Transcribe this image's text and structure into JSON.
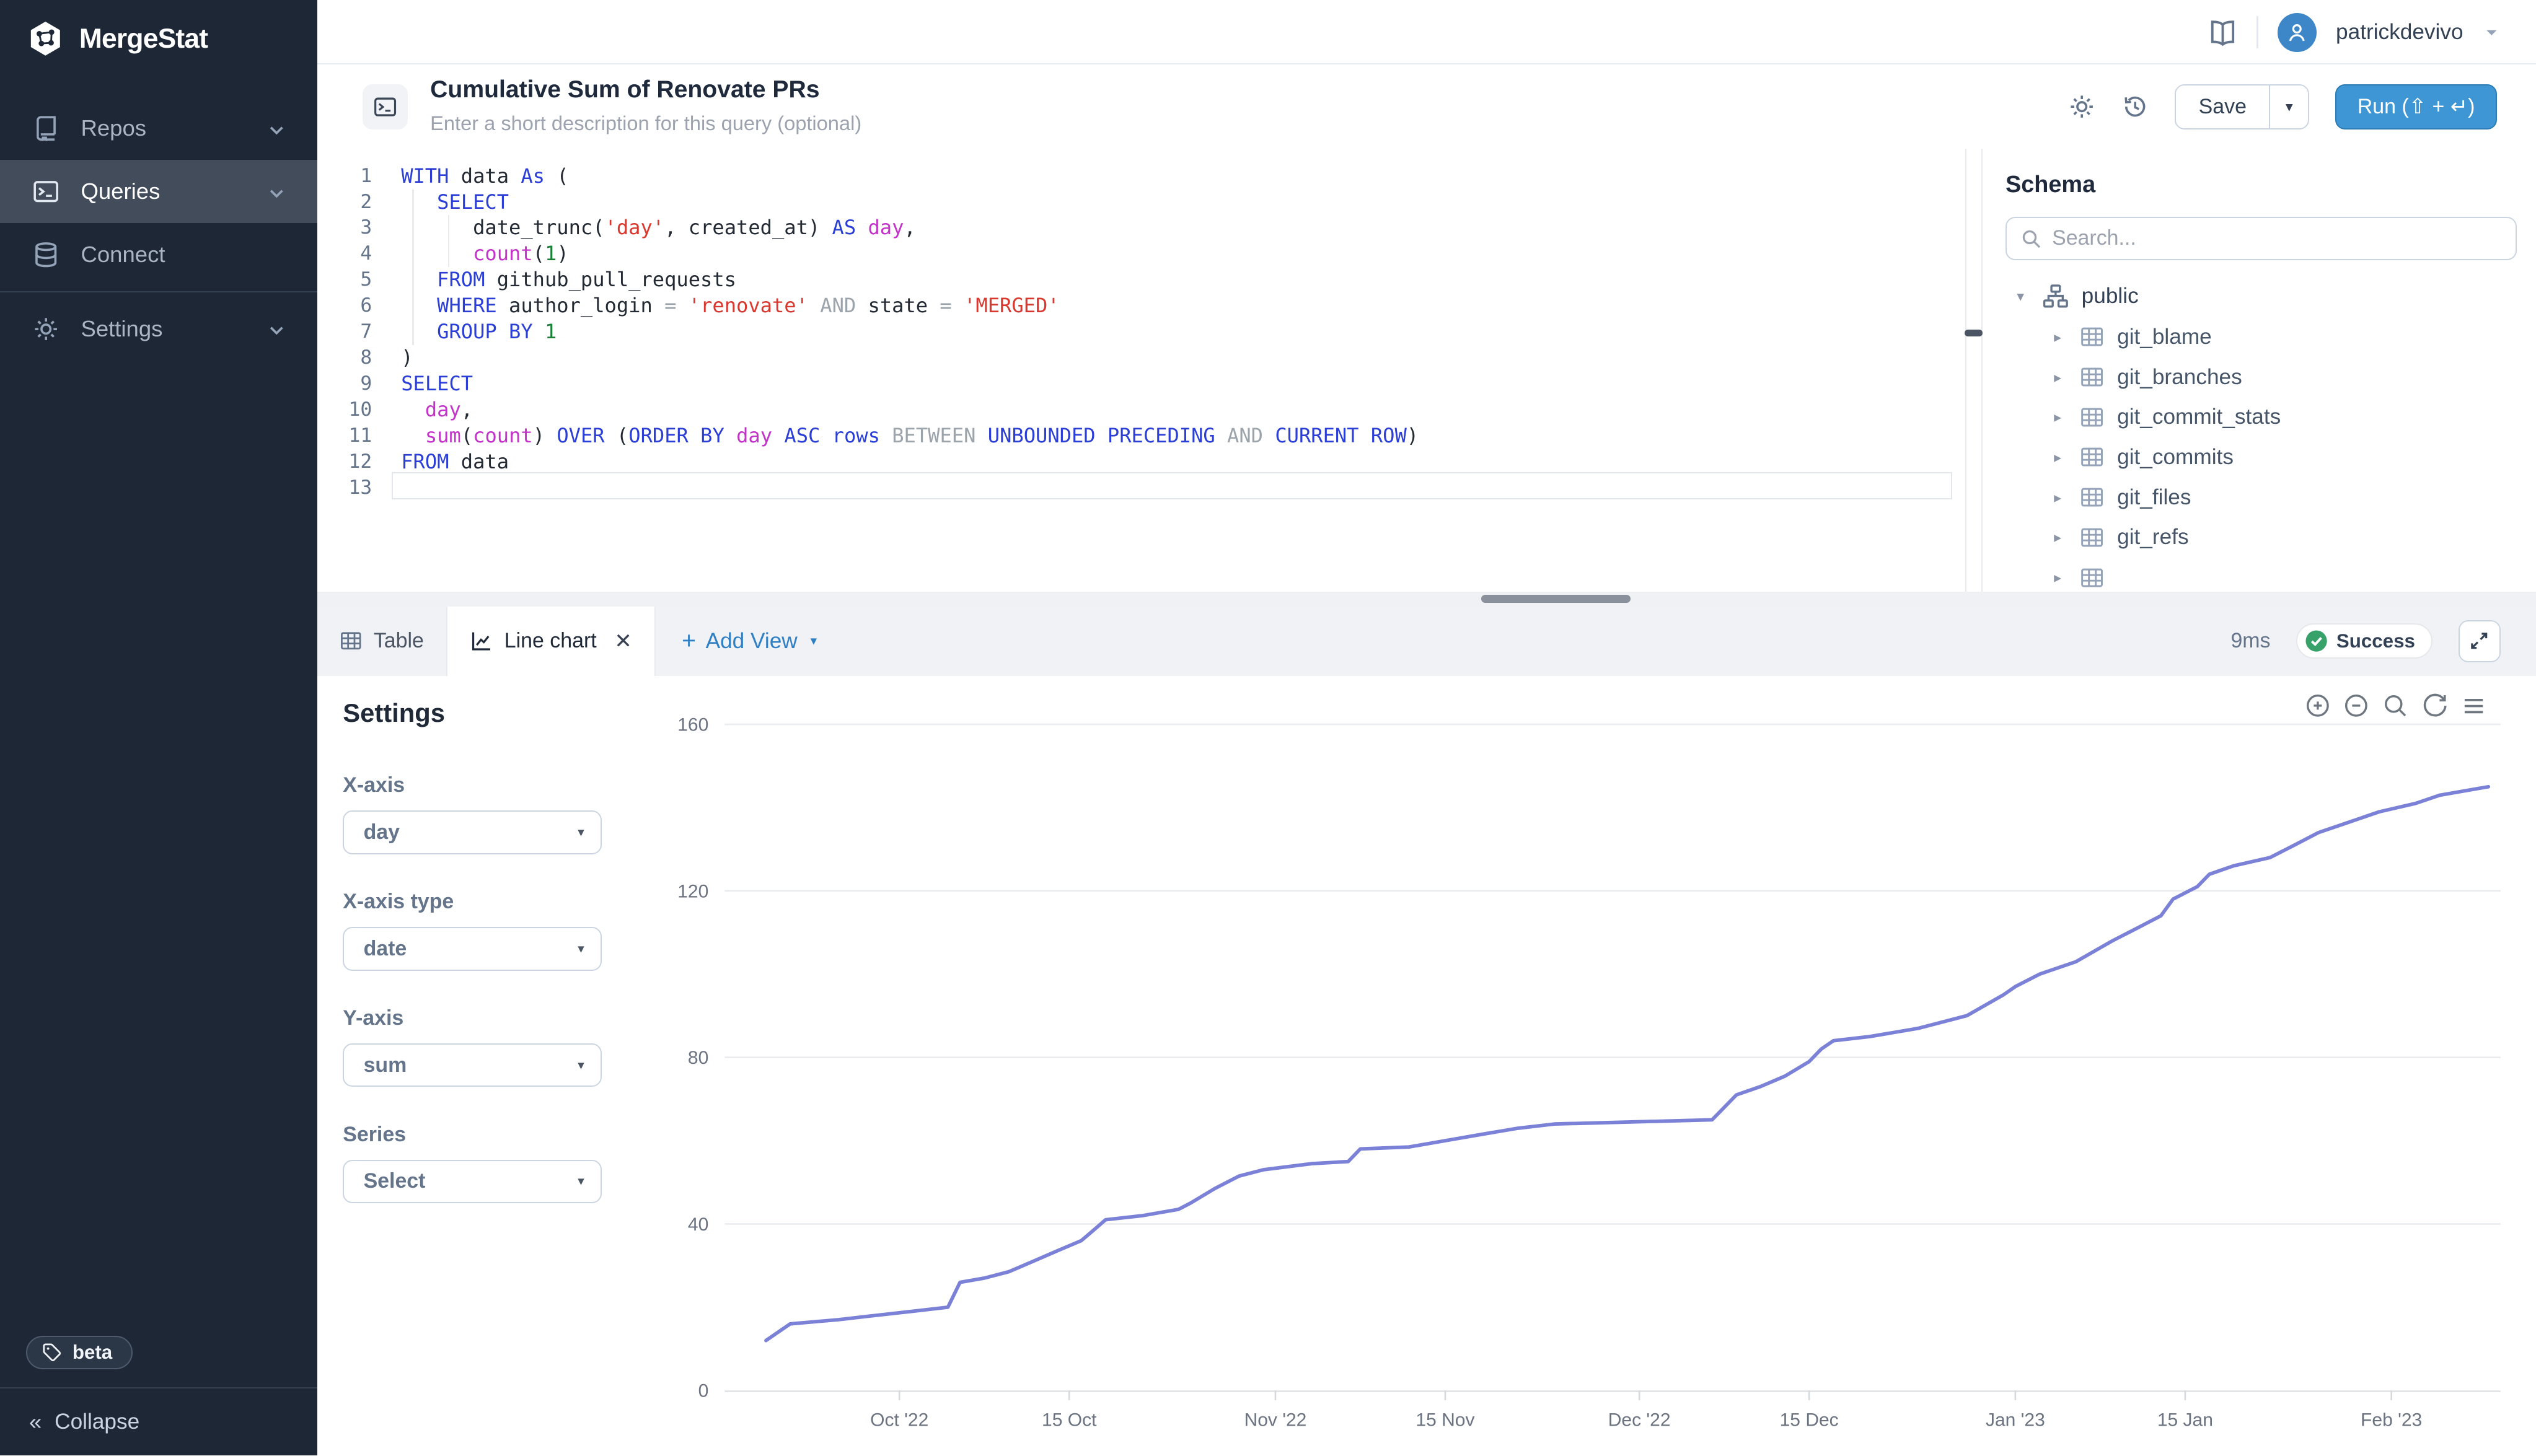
{
  "colors": {
    "sidebar_bg": "#1d2736",
    "accent_blue": "#3e97d4",
    "link_blue": "#2f7fc5",
    "success_green": "#36a269",
    "chart_line": "#7a81d6"
  },
  "sidebar": {
    "logo_text": "MergeStat",
    "items": [
      {
        "id": "repos",
        "label": "Repos",
        "icon": "repo-icon",
        "chevron": true,
        "active": false,
        "divider_above": false
      },
      {
        "id": "queries",
        "label": "Queries",
        "icon": "terminal-icon",
        "chevron": true,
        "active": true,
        "divider_above": false
      },
      {
        "id": "connect",
        "label": "Connect",
        "icon": "database-icon",
        "chevron": false,
        "active": false,
        "divider_above": false
      },
      {
        "id": "settings",
        "label": "Settings",
        "icon": "gear-icon",
        "chevron": true,
        "active": false,
        "divider_above": true
      }
    ],
    "beta_badge_label": "beta",
    "collapse_label": "Collapse"
  },
  "topbar": {
    "username": "patrickdevivo"
  },
  "query_header": {
    "title": "Cumulative Sum of Renovate PRs",
    "description_placeholder": "Enter a short description for this query (optional)",
    "save_label": "Save",
    "run_label": "Run (⇧ + ↵)"
  },
  "editor": {
    "active_line": 13,
    "lines": [
      {
        "n": 1,
        "g": 0,
        "t": [
          [
            "WITH",
            "kw"
          ],
          [
            " data ",
            "pl"
          ],
          [
            "As",
            "kw"
          ],
          [
            " (",
            "pl"
          ]
        ]
      },
      {
        "n": 2,
        "g": 1,
        "t": [
          [
            "   ",
            "pl"
          ],
          [
            "SELECT",
            "kw"
          ]
        ]
      },
      {
        "n": 3,
        "g": 2,
        "t": [
          [
            "      ",
            "pl"
          ],
          [
            "date_trunc(",
            "pl"
          ],
          [
            "'day'",
            "str"
          ],
          [
            ", created_at) ",
            "pl"
          ],
          [
            "AS",
            "kw"
          ],
          [
            " ",
            "pl"
          ],
          [
            "day",
            "fn"
          ],
          [
            ",",
            "pl"
          ]
        ]
      },
      {
        "n": 4,
        "g": 2,
        "t": [
          [
            "      ",
            "pl"
          ],
          [
            "count",
            "fn"
          ],
          [
            "(",
            "pl"
          ],
          [
            "1",
            "num"
          ],
          [
            ")",
            "pl"
          ]
        ]
      },
      {
        "n": 5,
        "g": 1,
        "t": [
          [
            "   ",
            "pl"
          ],
          [
            "FROM",
            "kw"
          ],
          [
            " github_pull_requests",
            "pl"
          ]
        ]
      },
      {
        "n": 6,
        "g": 1,
        "t": [
          [
            "   ",
            "pl"
          ],
          [
            "WHERE",
            "kw"
          ],
          [
            " author_login ",
            "pl"
          ],
          [
            "=",
            "op"
          ],
          [
            " ",
            "pl"
          ],
          [
            "'renovate'",
            "str"
          ],
          [
            " ",
            "pl"
          ],
          [
            "AND",
            "op"
          ],
          [
            " state ",
            "pl"
          ],
          [
            "=",
            "op"
          ],
          [
            " ",
            "pl"
          ],
          [
            "'MERGED'",
            "str"
          ]
        ]
      },
      {
        "n": 7,
        "g": 1,
        "t": [
          [
            "   ",
            "pl"
          ],
          [
            "GROUP BY",
            "kw"
          ],
          [
            " ",
            "pl"
          ],
          [
            "1",
            "num"
          ]
        ]
      },
      {
        "n": 8,
        "g": 0,
        "t": [
          [
            ")",
            "pl"
          ]
        ]
      },
      {
        "n": 9,
        "g": 0,
        "t": [
          [
            "SELECT",
            "kw"
          ]
        ]
      },
      {
        "n": 10,
        "g": 0,
        "t": [
          [
            "  ",
            "pl"
          ],
          [
            "day",
            "fn"
          ],
          [
            ",",
            "pl"
          ]
        ]
      },
      {
        "n": 11,
        "g": 0,
        "t": [
          [
            "  ",
            "pl"
          ],
          [
            "sum",
            "fn"
          ],
          [
            "(",
            "pl"
          ],
          [
            "count",
            "fn"
          ],
          [
            ") ",
            "pl"
          ],
          [
            "OVER",
            "kw"
          ],
          [
            " (",
            "pl"
          ],
          [
            "ORDER BY",
            "kw"
          ],
          [
            " ",
            "pl"
          ],
          [
            "day",
            "fn"
          ],
          [
            " ",
            "pl"
          ],
          [
            "ASC rows",
            "kw"
          ],
          [
            " ",
            "pl"
          ],
          [
            "BETWEEN",
            "op"
          ],
          [
            " ",
            "pl"
          ],
          [
            "UNBOUNDED PRECEDING",
            "kw"
          ],
          [
            " ",
            "pl"
          ],
          [
            "AND",
            "op"
          ],
          [
            " ",
            "pl"
          ],
          [
            "CURRENT ROW",
            "kw"
          ],
          [
            ")",
            "pl"
          ]
        ]
      },
      {
        "n": 12,
        "g": 0,
        "t": [
          [
            "FROM",
            "kw"
          ],
          [
            " data",
            "pl"
          ]
        ]
      },
      {
        "n": 13,
        "g": 0,
        "t": []
      }
    ]
  },
  "schema": {
    "title": "Schema",
    "search_placeholder": "Search...",
    "root_label": "public",
    "tables": [
      "git_blame",
      "git_branches",
      "git_commit_stats",
      "git_commits",
      "git_files",
      "git_refs"
    ],
    "partial_row_visible": true
  },
  "results_bar": {
    "tabs": [
      {
        "label": "Table",
        "icon": "table-icon",
        "active": false,
        "closable": false
      },
      {
        "label": "Line chart",
        "icon": "line-chart-icon",
        "active": true,
        "closable": true
      }
    ],
    "add_view_label": "Add View",
    "duration": "9ms",
    "status": "Success"
  },
  "settings_panel": {
    "title": "Settings",
    "fields": [
      {
        "label": "X-axis",
        "value": "day"
      },
      {
        "label": "X-axis type",
        "value": "date"
      },
      {
        "label": "Y-axis",
        "value": "sum"
      },
      {
        "label": "Series",
        "value": "Select"
      }
    ]
  },
  "chart_data": {
    "type": "line",
    "x_type": "date",
    "legend": "none",
    "grid": "horizontal-only",
    "ylim": [
      0,
      160
    ],
    "y_ticks": [
      0,
      40,
      80,
      120,
      160
    ],
    "x_ticks": [
      {
        "date": "2022-10-01",
        "label": "Oct '22"
      },
      {
        "date": "2022-10-15",
        "label": "15 Oct"
      },
      {
        "date": "2022-11-01",
        "label": "Nov '22"
      },
      {
        "date": "2022-11-15",
        "label": "15 Nov"
      },
      {
        "date": "2022-12-01",
        "label": "Dec '22"
      },
      {
        "date": "2022-12-15",
        "label": "15 Dec"
      },
      {
        "date": "2023-01-01",
        "label": "Jan '23"
      },
      {
        "date": "2023-01-15",
        "label": "15 Jan"
      },
      {
        "date": "2023-02-01",
        "label": "Feb '23"
      }
    ],
    "series": [
      {
        "name": "sum",
        "points": [
          [
            "2022-09-20",
            12
          ],
          [
            "2022-09-22",
            16
          ],
          [
            "2022-09-26",
            17
          ],
          [
            "2022-09-29",
            18
          ],
          [
            "2022-10-02",
            19
          ],
          [
            "2022-10-05",
            20
          ],
          [
            "2022-10-06",
            26
          ],
          [
            "2022-10-08",
            27
          ],
          [
            "2022-10-10",
            28.5
          ],
          [
            "2022-10-12",
            31
          ],
          [
            "2022-10-14",
            33.5
          ],
          [
            "2022-10-16",
            36
          ],
          [
            "2022-10-17",
            38.5
          ],
          [
            "2022-10-18",
            41
          ],
          [
            "2022-10-21",
            42
          ],
          [
            "2022-10-24",
            43.5
          ],
          [
            "2022-10-25",
            45
          ],
          [
            "2022-10-27",
            48.5
          ],
          [
            "2022-10-29",
            51.5
          ],
          [
            "2022-10-31",
            53
          ],
          [
            "2022-11-04",
            54.5
          ],
          [
            "2022-11-07",
            55
          ],
          [
            "2022-11-08",
            58
          ],
          [
            "2022-11-12",
            58.5
          ],
          [
            "2022-11-15",
            60
          ],
          [
            "2022-11-18",
            61.5
          ],
          [
            "2022-11-21",
            63
          ],
          [
            "2022-11-24",
            64
          ],
          [
            "2022-12-07",
            65
          ],
          [
            "2022-12-09",
            71
          ],
          [
            "2022-12-11",
            73
          ],
          [
            "2022-12-13",
            75.5
          ],
          [
            "2022-12-15",
            79
          ],
          [
            "2022-12-16",
            82
          ],
          [
            "2022-12-17",
            84
          ],
          [
            "2022-12-20",
            85
          ],
          [
            "2022-12-24",
            87
          ],
          [
            "2022-12-28",
            90
          ],
          [
            "2022-12-31",
            95
          ],
          [
            "2023-01-01",
            97
          ],
          [
            "2023-01-03",
            100
          ],
          [
            "2023-01-06",
            103
          ],
          [
            "2023-01-09",
            108
          ],
          [
            "2023-01-11",
            111
          ],
          [
            "2023-01-13",
            114
          ],
          [
            "2023-01-14",
            118
          ],
          [
            "2023-01-16",
            121
          ],
          [
            "2023-01-17",
            124
          ],
          [
            "2023-01-19",
            126
          ],
          [
            "2023-01-22",
            128
          ],
          [
            "2023-01-24",
            131
          ],
          [
            "2023-01-26",
            134
          ],
          [
            "2023-01-28",
            136
          ],
          [
            "2023-01-31",
            139
          ],
          [
            "2023-02-03",
            141
          ],
          [
            "2023-02-05",
            143
          ],
          [
            "2023-02-08",
            144.5
          ],
          [
            "2023-02-09",
            145
          ]
        ]
      }
    ],
    "line_color": "#7a81d6"
  },
  "chart_toolbar": [
    "zoom-in-icon",
    "zoom-out-icon",
    "selection-zoom-icon",
    "reset-zoom-icon",
    "menu-icon"
  ]
}
